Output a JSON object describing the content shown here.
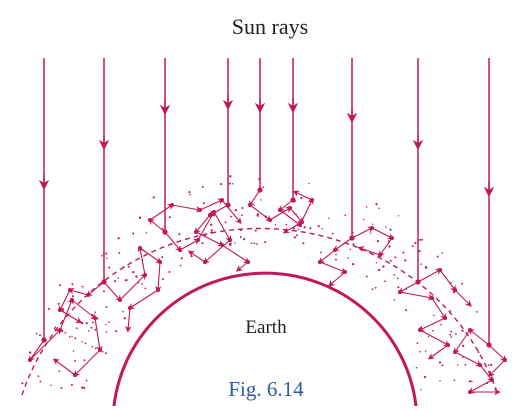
{
  "figure": {
    "top_label": "Sun rays",
    "center_label": "Earth",
    "caption": "Fig. 6.14"
  },
  "colors": {
    "ray": "#c2185b",
    "earth": "#c2185b",
    "atmosphere_boundary": "#c2185b",
    "dust": "#c2185b",
    "text": "#222222",
    "caption": "#2e5aa8"
  }
}
